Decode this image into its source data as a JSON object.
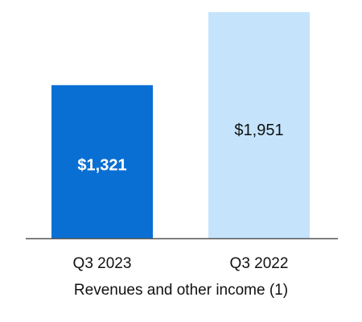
{
  "chart_data": {
    "type": "bar",
    "categories": [
      "Q3 2023",
      "Q3 2022"
    ],
    "values": [
      1321,
      1951
    ],
    "data_labels": [
      "$1,321",
      "$1,951"
    ],
    "xlabel": "Revenues and other income (1)",
    "ylabel": "",
    "ylim": [
      0,
      2000
    ],
    "grid": false,
    "legend": "none",
    "colors": {
      "bars": [
        "#0a6fd3",
        "#c5e4fc"
      ],
      "labels": [
        "#ffffff",
        "#111111"
      ],
      "label_bold": [
        true,
        false
      ],
      "axis": "#555555"
    }
  }
}
